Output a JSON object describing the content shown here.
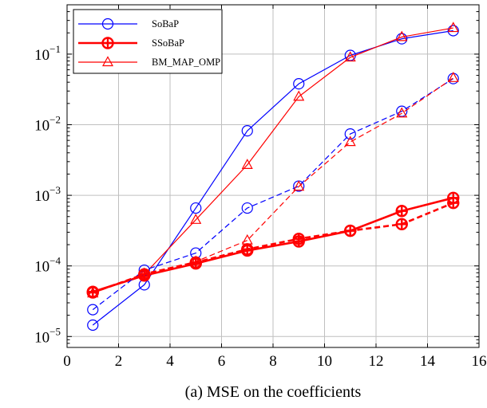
{
  "caption": "(a) MSE on the coefficients",
  "colors": {
    "blue": "#0000ff",
    "red": "#ff0000",
    "grid": "#bfbfbf"
  },
  "chart_data": {
    "type": "line",
    "title": "",
    "xlabel": "",
    "ylabel": "",
    "xlim": [
      0,
      16
    ],
    "ylim": [
      7e-06,
      0.5
    ],
    "yscale": "log",
    "grid": true,
    "legend": "top-left",
    "x_ticks": [
      0,
      2,
      4,
      6,
      8,
      10,
      12,
      14,
      16
    ],
    "y_ticks": [
      {
        "value": 1e-05,
        "label_base": "10",
        "label_exp": "−5"
      },
      {
        "value": 0.0001,
        "label_base": "10",
        "label_exp": "−4"
      },
      {
        "value": 0.001,
        "label_base": "10",
        "label_exp": "−3"
      },
      {
        "value": 0.01,
        "label_base": "10",
        "label_exp": "−2"
      },
      {
        "value": 0.1,
        "label_base": "10",
        "label_exp": "−1"
      }
    ],
    "series": [
      {
        "name": "SoBaP",
        "color": "#0000ff",
        "marker": "circle",
        "style": "solid",
        "width": 1.2,
        "in_legend": true,
        "x": [
          1,
          3,
          5,
          7,
          9,
          11,
          13,
          15
        ],
        "y": [
          1.45e-05,
          5.4e-05,
          0.00066,
          0.0082,
          0.038,
          0.096,
          0.165,
          0.215
        ]
      },
      {
        "name": "SSoBaP",
        "color": "#ff0000",
        "marker": "circle-plus",
        "style": "solid",
        "width": 2.6,
        "in_legend": true,
        "x": [
          1,
          3,
          5,
          7,
          9,
          11,
          13,
          15
        ],
        "y": [
          4.3e-05,
          7.3e-05,
          0.000108,
          0.000165,
          0.000222,
          0.000315,
          0.0006,
          0.00092
        ]
      },
      {
        "name": "BM_MAP_OMP",
        "color": "#ff0000",
        "marker": "triangle",
        "style": "solid",
        "width": 1.2,
        "in_legend": true,
        "x": [
          1,
          3,
          5,
          7,
          9,
          11,
          13,
          15
        ],
        "y": [
          4.1e-05,
          7.6e-05,
          0.00045,
          0.0027,
          0.025,
          0.09,
          0.175,
          0.235
        ]
      },
      {
        "name": "",
        "color": "#0000ff",
        "marker": "circle",
        "style": "dashed",
        "width": 1.2,
        "in_legend": false,
        "x": [
          1,
          3,
          5,
          7,
          9,
          11,
          13,
          15
        ],
        "y": [
          2.4e-05,
          8.7e-05,
          0.000152,
          0.00066,
          0.00135,
          0.0074,
          0.0155,
          0.045
        ]
      },
      {
        "name": "",
        "color": "#ff0000",
        "marker": "circle-plus",
        "style": "dashed",
        "width": 2.6,
        "in_legend": false,
        "x": [
          1,
          3,
          5,
          7,
          9,
          11,
          13,
          15
        ],
        "y": [
          4.2e-05,
          7.6e-05,
          0.000112,
          0.000172,
          0.000242,
          0.000315,
          0.00039,
          0.00078
        ]
      },
      {
        "name": "",
        "color": "#ff0000",
        "marker": "triangle",
        "style": "dashed",
        "width": 1.2,
        "in_legend": false,
        "x": [
          1,
          3,
          5,
          7,
          9,
          11,
          13,
          15
        ],
        "y": [
          4.1e-05,
          7.8e-05,
          0.000115,
          0.00023,
          0.00133,
          0.0057,
          0.0145,
          0.046
        ]
      }
    ]
  }
}
